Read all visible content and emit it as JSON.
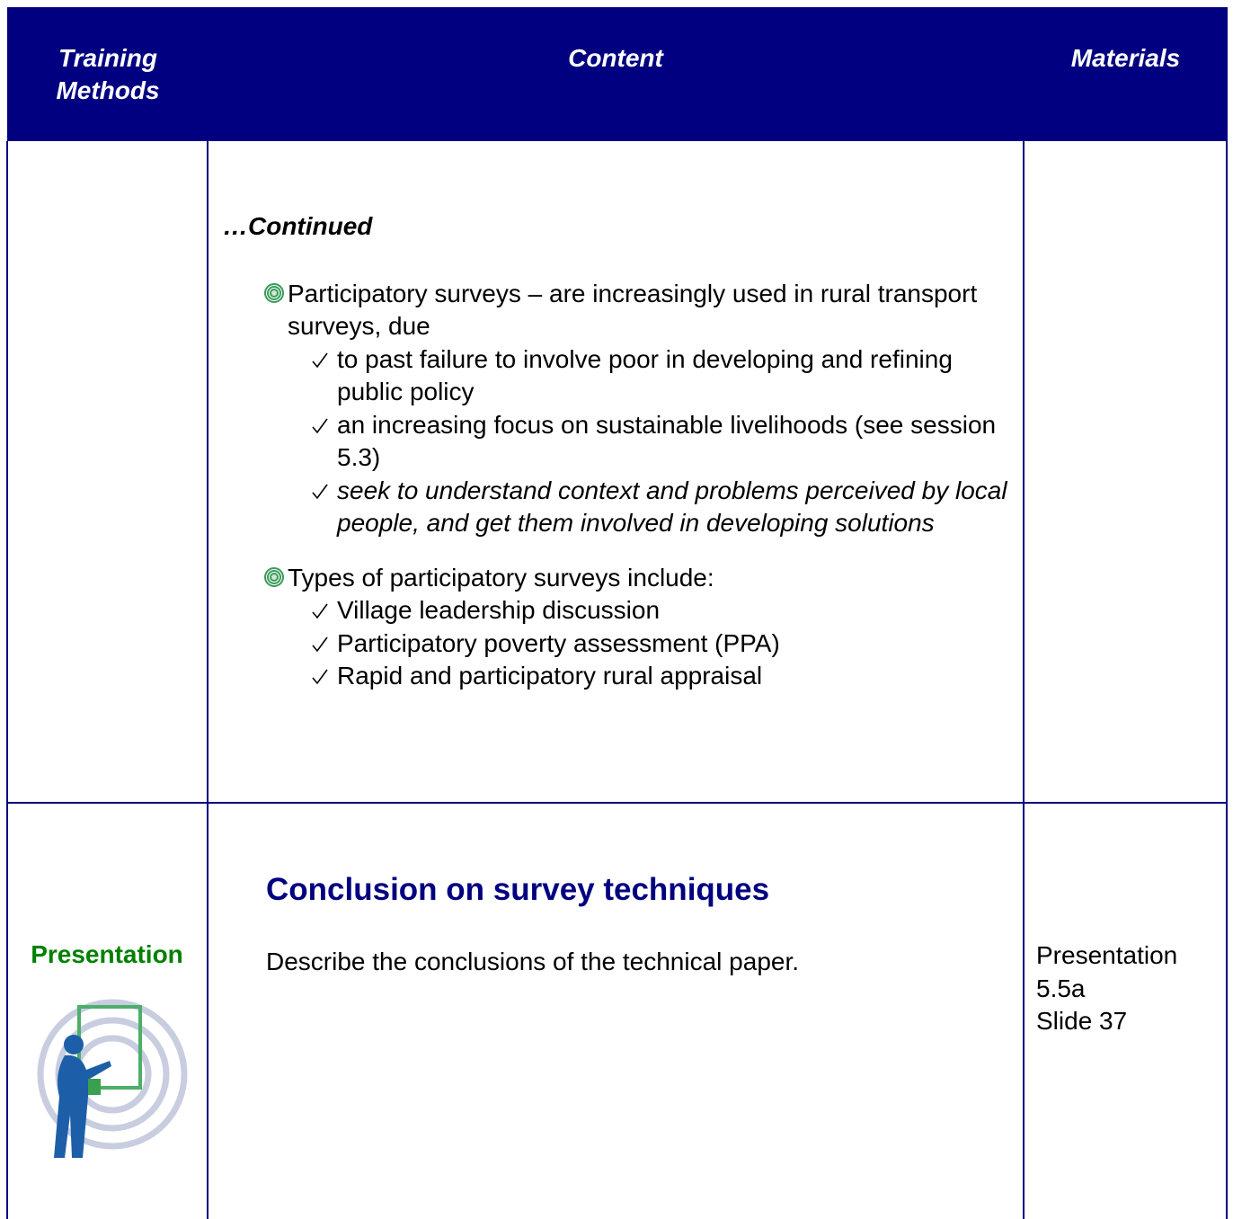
{
  "table": {
    "header": [
      "Training Methods",
      "Content",
      "Materials"
    ],
    "rows": [
      {
        "content": {
          "continued": "…Continued",
          "bullets": [
            {
              "text": "Participatory surveys – are increasingly used in rural transport surveys, due",
              "checks": [
                "to past failure to involve poor in developing and refining public policy",
                "an increasing focus on sustainable livelihoods (see session 5.3)",
                "seek to understand context and  problems perceived by local people, and get them involved in developing solutions"
              ]
            },
            {
              "text": "Types of participatory surveys include:",
              "checks": [
                "Village leadership discussion",
                "Participatory poverty assessment (PPA)",
                "Rapid and participatory rural appraisal"
              ]
            }
          ]
        }
      },
      {
        "method": "Presentation",
        "content": {
          "heading": "Conclusion on survey techniques",
          "text": "Describe the conclusions of the technical paper."
        },
        "materials": [
          "Presentation",
          "5.5a",
          "Slide 37"
        ]
      }
    ]
  }
}
